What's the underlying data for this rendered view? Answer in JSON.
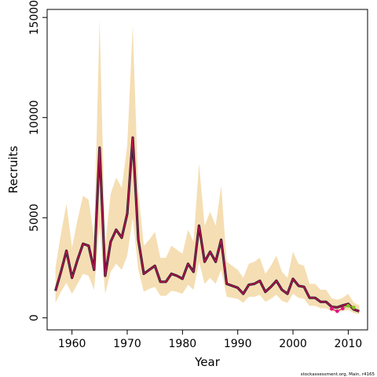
{
  "chart_data": {
    "type": "line",
    "title": "",
    "xlabel": "Year",
    "ylabel": "Recruits",
    "xlim": [
      1955.5,
      2013.5
    ],
    "ylim": [
      -600,
      15400
    ],
    "x_ticks": [
      1960,
      1970,
      1980,
      1990,
      2000,
      2010
    ],
    "y_ticks": [
      0,
      5000,
      10000,
      15000
    ],
    "grid": false,
    "legend": "none",
    "colors": {
      "band": "#f5deb3",
      "line_dark": "#2b1a33",
      "line_red": "#c0134a",
      "tail_green": "#7fc41e",
      "tail_pink": "#e0157c"
    },
    "series": [
      {
        "name": "",
        "x": [
          1957,
          1958,
          1959,
          1960,
          1961,
          1962,
          1963,
          1964,
          1965,
          1966,
          1967,
          1968,
          1969,
          1970,
          1971,
          1972,
          1973,
          1974,
          1975,
          1976,
          1977,
          1978,
          1979,
          1980,
          1981,
          1982,
          1983,
          1984,
          1985,
          1986,
          1987,
          1988,
          1989,
          1990,
          1991,
          1992,
          1993,
          1994,
          1995,
          1996,
          1997,
          1998,
          1999,
          2000,
          2001,
          2002,
          2003,
          2004,
          2005,
          2006,
          2007,
          2008,
          2009,
          2010,
          2011,
          2012
        ],
        "y": [
          1350,
          2300,
          3350,
          2000,
          2900,
          3700,
          3600,
          2400,
          8500,
          2100,
          3800,
          4400,
          4000,
          5200,
          9000,
          3900,
          2200,
          2400,
          2600,
          1800,
          1800,
          2200,
          2100,
          1950,
          2700,
          2300,
          4600,
          2800,
          3300,
          2800,
          3900,
          1700,
          1600,
          1500,
          1200,
          1650,
          1700,
          1850,
          1300,
          1550,
          1850,
          1400,
          1200,
          1950,
          1600,
          1550,
          1000,
          1000,
          800,
          800,
          550,
          520,
          620,
          700,
          420,
          330
        ],
        "lower": [
          750,
          1300,
          1750,
          1200,
          1700,
          2200,
          2100,
          1400,
          4600,
          1200,
          2300,
          2700,
          2400,
          3100,
          5000,
          2400,
          1300,
          1450,
          1550,
          1100,
          1100,
          1350,
          1300,
          1200,
          1650,
          1400,
          2800,
          1700,
          2000,
          1700,
          2400,
          1050,
          1000,
          950,
          750,
          1050,
          1050,
          1150,
          800,
          950,
          1150,
          850,
          750,
          1200,
          1000,
          950,
          600,
          600,
          480,
          480,
          330,
          300,
          350,
          400,
          240,
          180
        ],
        "upper": [
          2500,
          4200,
          5700,
          3500,
          4900,
          6100,
          5900,
          4000,
          14900,
          3600,
          6200,
          7000,
          6500,
          8600,
          14600,
          6300,
          3600,
          3900,
          4300,
          3000,
          3000,
          3600,
          3400,
          3200,
          4400,
          3800,
          7700,
          4600,
          5300,
          4600,
          6600,
          2800,
          2600,
          2400,
          2000,
          2700,
          2800,
          3000,
          2200,
          2600,
          3100,
          2300,
          2000,
          3300,
          2700,
          2600,
          1700,
          1700,
          1400,
          1400,
          980,
          900,
          1000,
          1200,
          760,
          620
        ]
      }
    ],
    "tail_points": [
      {
        "x": 2007,
        "y": 450,
        "color": "#e0157c"
      },
      {
        "x": 2008,
        "y": 330,
        "color": "#e0157c"
      },
      {
        "x": 2009,
        "y": 470,
        "color": "#e0157c"
      },
      {
        "x": 2010,
        "y": 600,
        "color": "#7fc41e"
      },
      {
        "x": 2011,
        "y": 520,
        "color": "#7fc41e"
      }
    ],
    "credit": "stockassessment.org, Main, r4165"
  }
}
